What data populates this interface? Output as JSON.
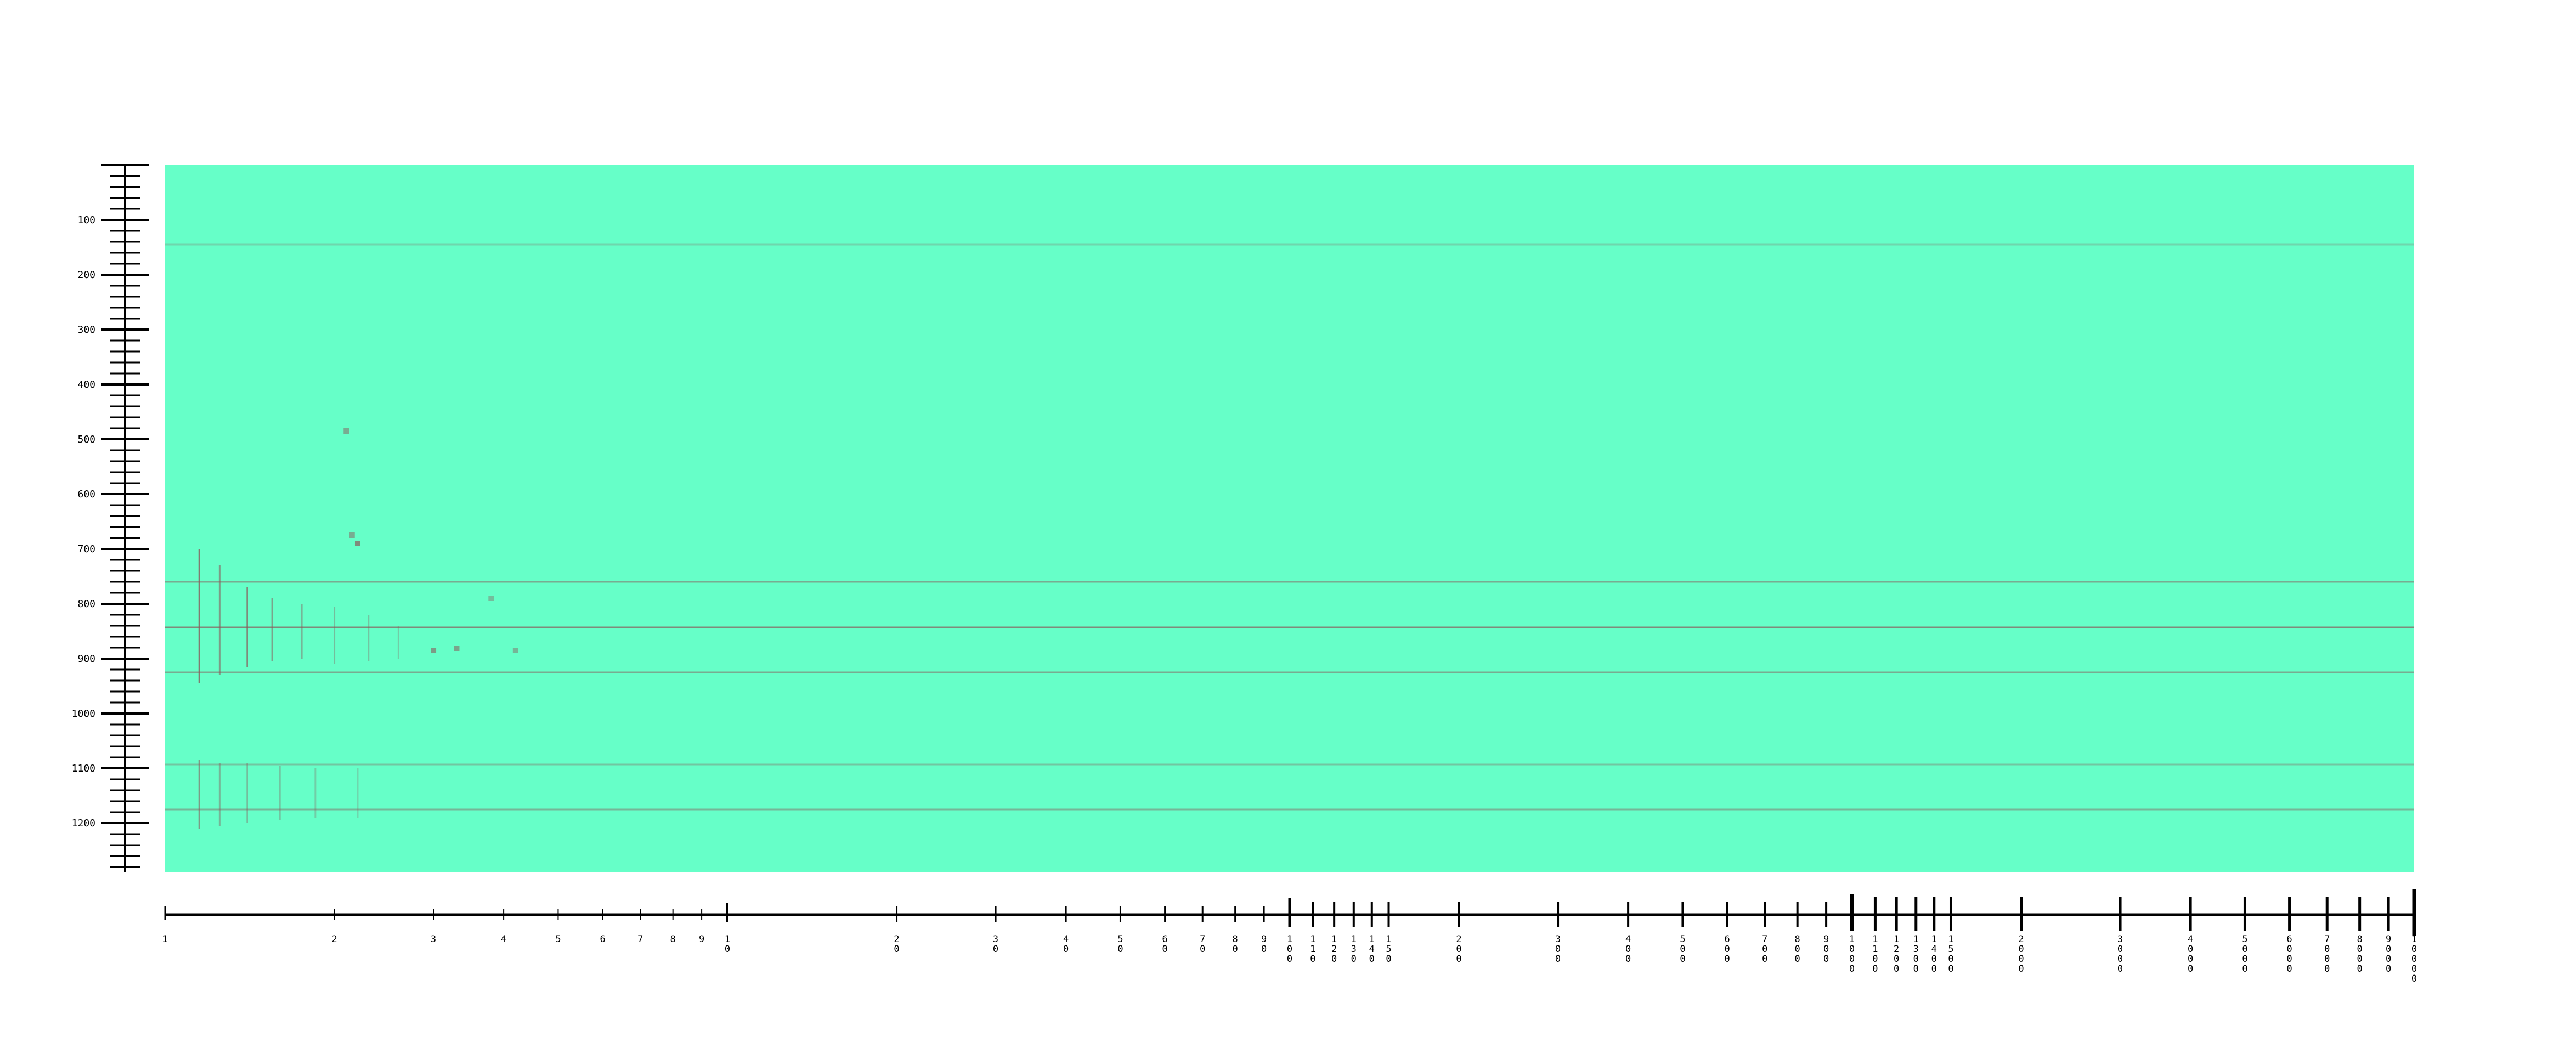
{
  "chart_data": {
    "type": "heatmap",
    "title": "",
    "xlabel": "",
    "ylabel": "",
    "x_scale": "log",
    "xlim": [
      1,
      10000
    ],
    "ylim": [
      0,
      1290
    ],
    "y_reversed": true,
    "background_color": "#66ffc8",
    "mark_color": "#8a5a5a",
    "grid": false,
    "legend": "none",
    "y_ticks": [
      100,
      200,
      300,
      400,
      500,
      600,
      700,
      800,
      900,
      1000,
      1100,
      1200
    ],
    "y_tick_labels": [
      "100",
      "200",
      "300",
      "400",
      "500",
      "600",
      "700",
      "800",
      "900",
      "1000",
      "1100",
      "1200"
    ],
    "x_ticks": [
      1,
      2,
      3,
      4,
      5,
      6,
      7,
      8,
      9,
      10,
      20,
      30,
      40,
      50,
      60,
      70,
      80,
      90,
      100,
      110,
      120,
      130,
      140,
      150,
      200,
      300,
      400,
      500,
      600,
      700,
      800,
      900,
      1000,
      1100,
      1200,
      1300,
      1400,
      1500,
      2000,
      3000,
      4000,
      5000,
      6000,
      7000,
      8000,
      9000,
      10000
    ],
    "x_tick_labels": [
      "1",
      "2",
      "3",
      "4",
      "5",
      "6",
      "7",
      "8",
      "9",
      "10",
      "20",
      "30",
      "40",
      "50",
      "60",
      "70",
      "80",
      "90",
      "100",
      "110",
      "120",
      "130",
      "140",
      "150",
      "200",
      "300",
      "400",
      "500",
      "600",
      "700",
      "800",
      "900",
      "1000",
      "1100",
      "1200",
      "1300",
      "1400",
      "1500",
      "2000",
      "3000",
      "4000",
      "5000",
      "6000",
      "7000",
      "8000",
      "9000",
      "10000"
    ],
    "horizontal_bands": [
      {
        "y": 145,
        "strength": 0.25
      },
      {
        "y": 760,
        "strength": 0.5
      },
      {
        "y": 843,
        "strength": 0.7
      },
      {
        "y": 925,
        "strength": 0.5
      },
      {
        "y": 1093,
        "strength": 0.35
      },
      {
        "y": 1175,
        "strength": 0.45
      }
    ],
    "spikes": [
      {
        "x": 1.15,
        "y0": 700,
        "y1": 945,
        "strength": 0.8
      },
      {
        "x": 1.25,
        "y0": 730,
        "y1": 930,
        "strength": 0.6
      },
      {
        "x": 1.4,
        "y0": 770,
        "y1": 915,
        "strength": 0.7
      },
      {
        "x": 1.55,
        "y0": 790,
        "y1": 905,
        "strength": 0.55
      },
      {
        "x": 1.75,
        "y0": 800,
        "y1": 900,
        "strength": 0.45
      },
      {
        "x": 2.0,
        "y0": 805,
        "y1": 910,
        "strength": 0.4
      },
      {
        "x": 2.3,
        "y0": 820,
        "y1": 905,
        "strength": 0.35
      },
      {
        "x": 2.6,
        "y0": 840,
        "y1": 900,
        "strength": 0.3
      },
      {
        "x": 1.15,
        "y0": 1085,
        "y1": 1210,
        "strength": 0.6
      },
      {
        "x": 1.25,
        "y0": 1090,
        "y1": 1205,
        "strength": 0.45
      },
      {
        "x": 1.4,
        "y0": 1090,
        "y1": 1200,
        "strength": 0.4
      },
      {
        "x": 1.6,
        "y0": 1095,
        "y1": 1195,
        "strength": 0.35
      },
      {
        "x": 1.85,
        "y0": 1100,
        "y1": 1190,
        "strength": 0.3
      },
      {
        "x": 2.2,
        "y0": 1100,
        "y1": 1190,
        "strength": 0.25
      }
    ],
    "spots": [
      {
        "x": 2.1,
        "y": 485,
        "strength": 0.5
      },
      {
        "x": 2.15,
        "y": 675,
        "strength": 0.5
      },
      {
        "x": 2.2,
        "y": 690,
        "strength": 0.7
      },
      {
        "x": 3.0,
        "y": 885,
        "strength": 0.6
      },
      {
        "x": 3.3,
        "y": 882,
        "strength": 0.55
      },
      {
        "x": 3.8,
        "y": 790,
        "strength": 0.4
      },
      {
        "x": 4.2,
        "y": 885,
        "strength": 0.45
      }
    ]
  }
}
